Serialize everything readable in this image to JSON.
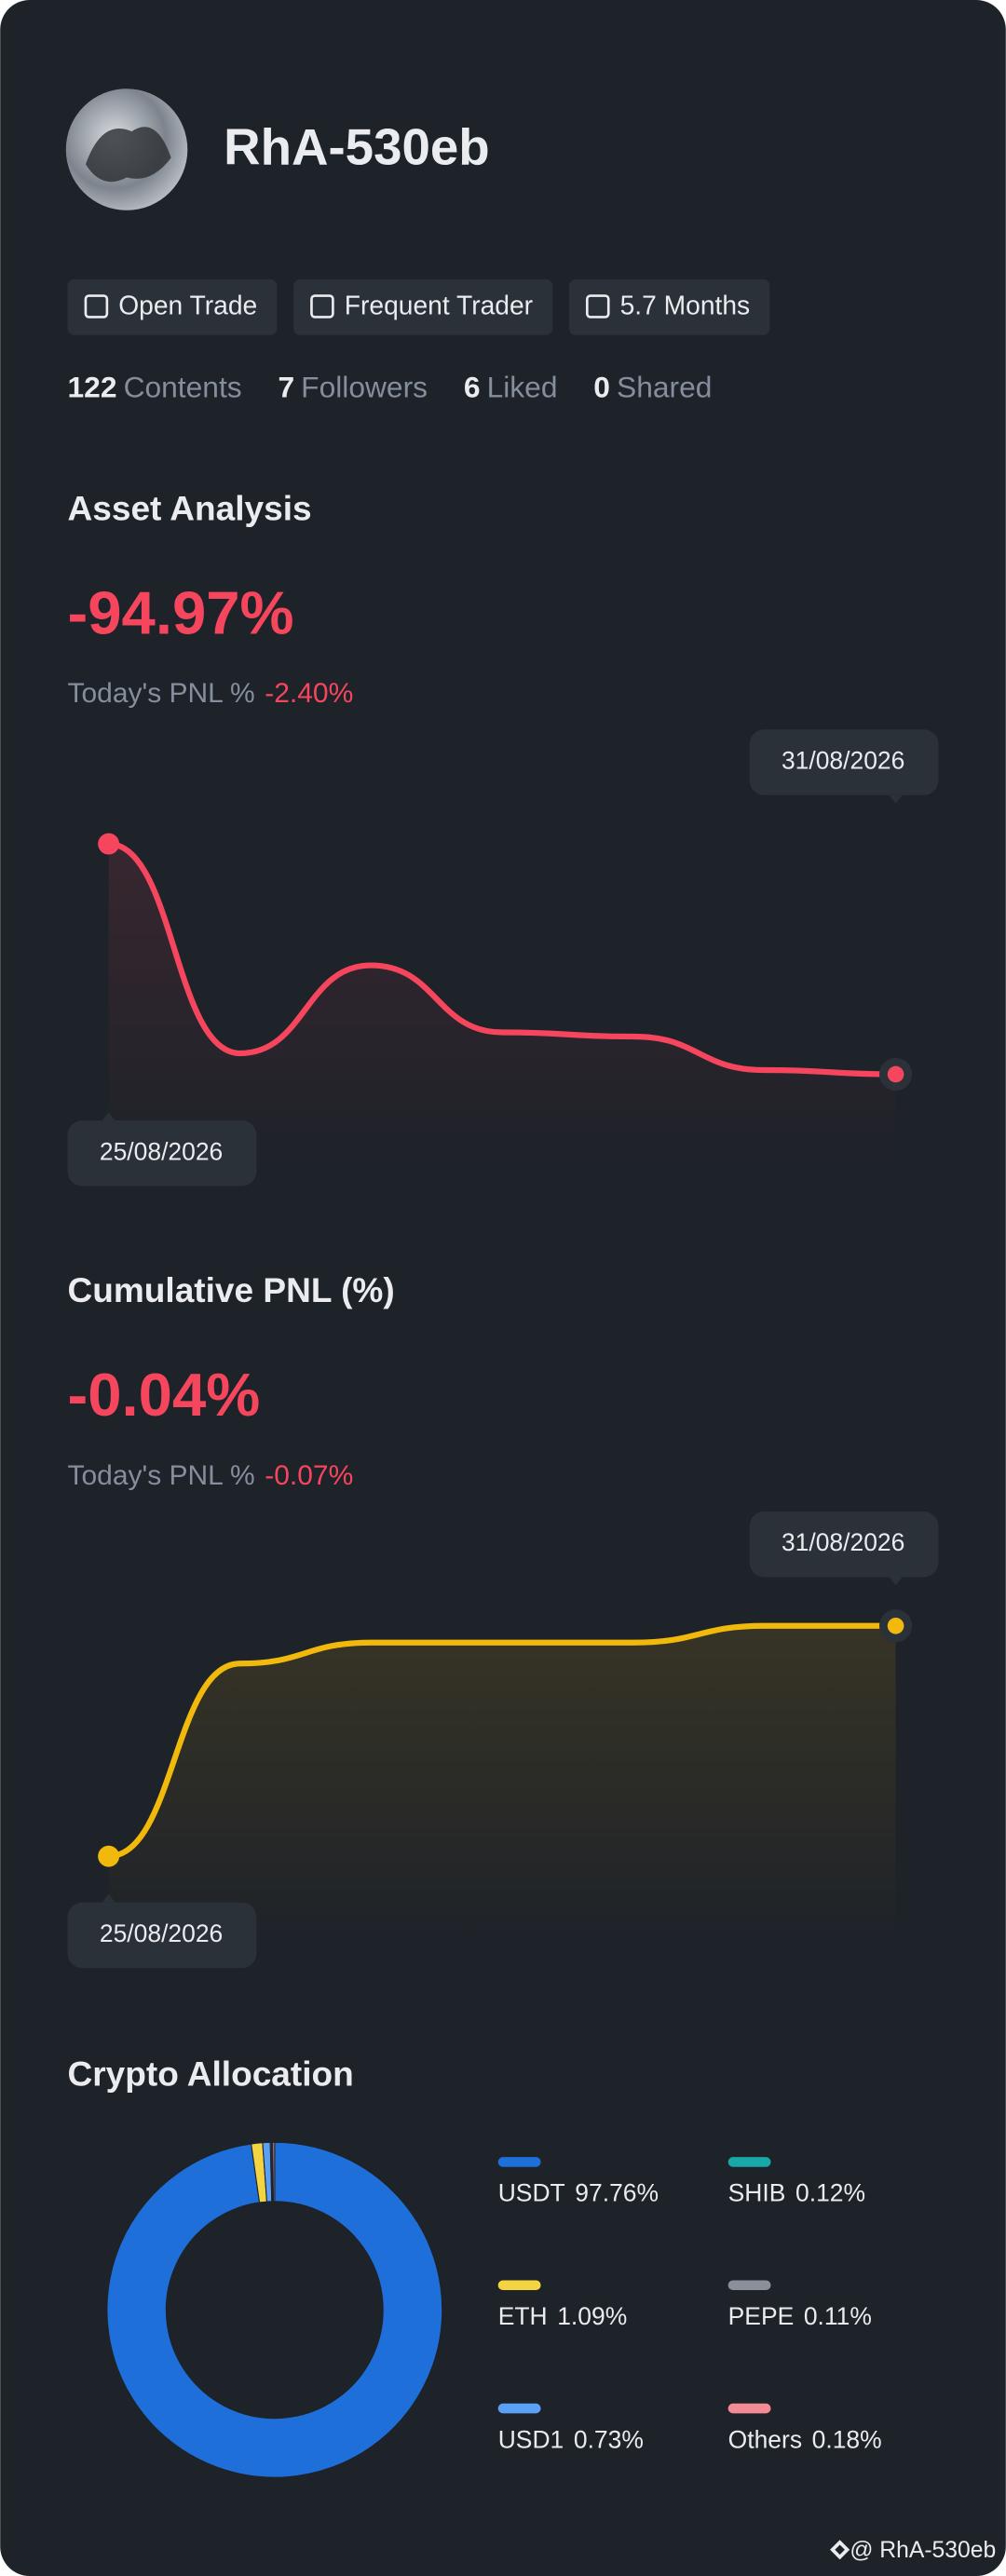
{
  "profile": {
    "name": "RhA-530eb",
    "badges": [
      "Open Trade",
      "Frequent Trader",
      "5.7 Months"
    ],
    "stats": [
      {
        "value": 122,
        "label": "Contents"
      },
      {
        "value": 7,
        "label": "Followers"
      },
      {
        "value": 6,
        "label": "Liked"
      },
      {
        "value": 0,
        "label": "Shared"
      }
    ]
  },
  "chart_data": [
    {
      "type": "line",
      "title": "Asset Analysis",
      "headline": "-94.97%",
      "subtitle": "Today's PNL %",
      "subtitle_value": "-2.40%",
      "categories": [
        "25/08/2026",
        null,
        null,
        null,
        null,
        null,
        "31/08/2026"
      ],
      "values": [
        77,
        27,
        48,
        32,
        31,
        23,
        22
      ],
      "color": "#f6465d",
      "ylim": [
        0,
        100
      ]
    },
    {
      "type": "line",
      "title": "Cumulative PNL (%)",
      "headline": "-0.04%",
      "subtitle": "Today's PNL %",
      "subtitle_value": "-0.07%",
      "categories": [
        "25/08/2026",
        null,
        null,
        null,
        null,
        null,
        "31/08/2026"
      ],
      "values": [
        22,
        68,
        73,
        73,
        73,
        77,
        77
      ],
      "color": "#f0b90b",
      "ylim": [
        0,
        100
      ]
    },
    {
      "type": "pie",
      "donut": true,
      "title": "Crypto Allocation",
      "categories": [
        "USDT",
        "ETH",
        "USD1",
        "SHIB",
        "PEPE",
        "Others"
      ],
      "values": [
        97.76,
        1.09,
        0.73,
        0.12,
        0.11,
        0.18
      ],
      "value_labels": [
        "97.76%",
        "1.09%",
        "0.73%",
        "0.12%",
        "0.11%",
        "0.18%"
      ],
      "colors": [
        "#1e6fd9",
        "#f5d442",
        "#5aa0f5",
        "#1aa7a7",
        "#8a8f99",
        "#f28b95"
      ]
    }
  ],
  "footer": {
    "watermark": "@ RhA-530eb"
  }
}
